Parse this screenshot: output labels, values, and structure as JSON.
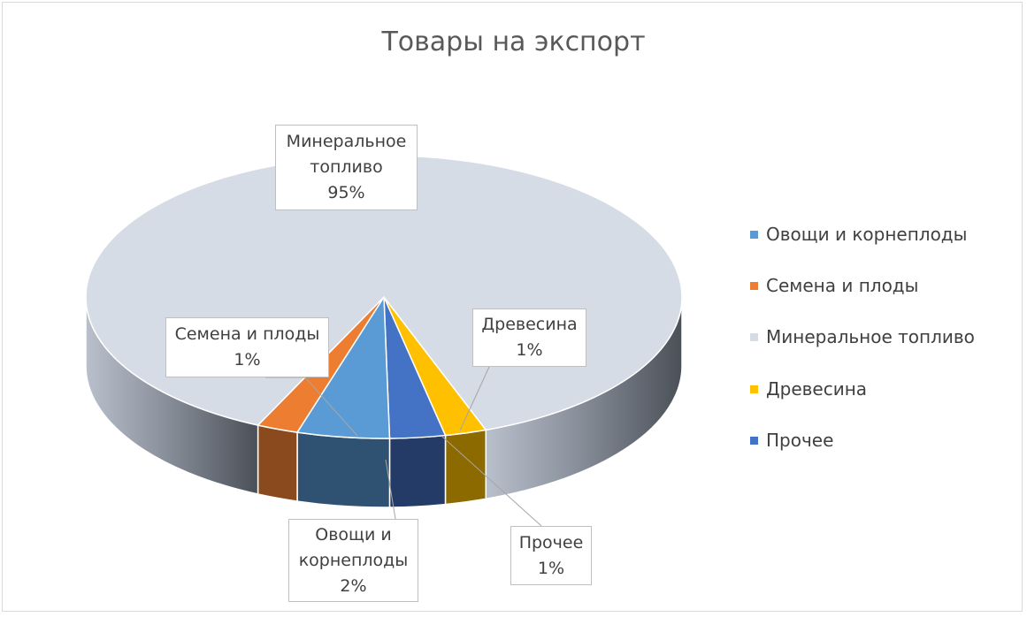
{
  "chart_data": {
    "type": "pie",
    "style": "3d",
    "title": "Товары на экспорт",
    "legend_position": "right",
    "categories": [
      "Овощи и корнеплоды",
      "Семена и плоды",
      "Минеральное топливо",
      "Древесина",
      "Прочее"
    ],
    "values": [
      2,
      1,
      95,
      1,
      1
    ],
    "value_labels": [
      "2%",
      "1%",
      "95%",
      "1%",
      "1%"
    ],
    "colors": [
      "#5b9bd5",
      "#ed7d31",
      "#d6dce5",
      "#ffc000",
      "#4472c4"
    ],
    "side_colors": [
      "#2f5272",
      "#8a4a1e",
      "#9aa3ae",
      "#8c6a00",
      "#233b66"
    ]
  },
  "labels": {
    "veg_line1": "Овощи и",
    "veg_line2": "корнеплоды",
    "veg_pct": "2%",
    "seeds_line1": "Семена и плоды",
    "seeds_pct": "1%",
    "fuel_line1": "Минеральное",
    "fuel_line2": "топливо",
    "fuel_pct": "95%",
    "wood_line1": "Древесина",
    "wood_pct": "1%",
    "other_line1": "Прочее",
    "other_pct": "1%"
  }
}
